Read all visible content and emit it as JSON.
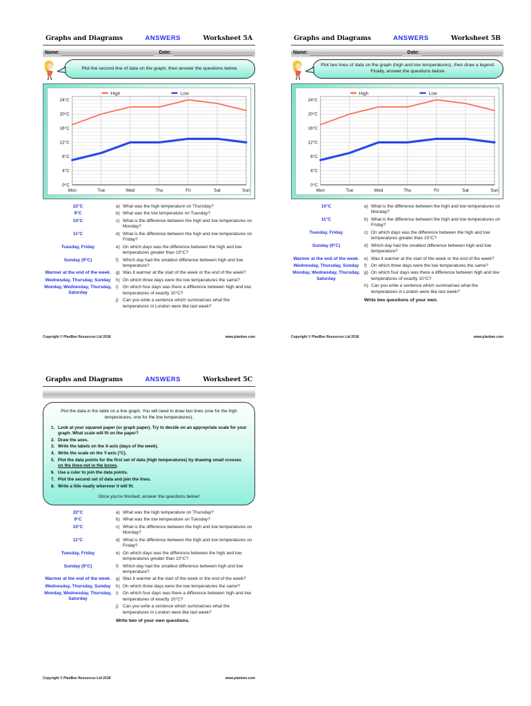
{
  "colors": {
    "answers_blue": "#2233ee",
    "answer_text_blue": "#2233dd",
    "high_line": "#ff6a50",
    "low_line": "#2648e8",
    "bubble_teal": "#83ecd6"
  },
  "chart_data": [
    {
      "worksheet": "5A",
      "type": "line",
      "title": "",
      "xlabel": "",
      "ylabel": "",
      "categories": [
        "Mon",
        "Tue",
        "Wed",
        "Thu",
        "Fri",
        "Sat",
        "Sun"
      ],
      "series": [
        {
          "name": "High",
          "color": "#ff6a50",
          "values": [
            17,
            20,
            22,
            22,
            24,
            23,
            21
          ]
        },
        {
          "name": "Low",
          "color": "#2648e8",
          "values": [
            7,
            9,
            12,
            12,
            13,
            13,
            12
          ]
        }
      ],
      "ylim": [
        0,
        24
      ],
      "ytick_major": 4,
      "ytick_minor": 1,
      "ylabel_suffix": "°C",
      "grid": true,
      "legend_position": "top"
    },
    {
      "worksheet": "5B",
      "type": "line",
      "title": "",
      "xlabel": "",
      "ylabel": "",
      "categories": [
        "Mon",
        "Tue",
        "Wed",
        "Thu",
        "Fri",
        "Sat",
        "Sun"
      ],
      "series": [
        {
          "name": "High",
          "color": "#ff6a50",
          "values": [
            17,
            20,
            22,
            22,
            24,
            23,
            21
          ]
        },
        {
          "name": "Low",
          "color": "#2648e8",
          "values": [
            7,
            9,
            12,
            12,
            13,
            13,
            12
          ]
        }
      ],
      "ylim": [
        0,
        24
      ],
      "ytick_major": 4,
      "ytick_minor": 1,
      "ylabel_suffix": "°C",
      "grid": true,
      "legend_position": "top"
    }
  ],
  "footer": {
    "copyright": "Copyright © PlanBee Resources Ltd 2018",
    "website": "www.planbee.com"
  },
  "worksheets": {
    "a": {
      "header": {
        "title": "Graphs and Diagrams",
        "answers": "ANSWERS",
        "worksheet": "Worksheet 5A"
      },
      "name_label": "Name:",
      "date_label": "Date:",
      "bubble": "Plot the second line of data on the graph, then answer the questions below.",
      "questions": [
        {
          "letter": "a)",
          "answer": "22°C",
          "text": "What was the high temperature on Thursday?"
        },
        {
          "letter": "b)",
          "answer": "9°C",
          "text": "What was the low temperature on Tuesday?"
        },
        {
          "letter": "c)",
          "answer": "10°C",
          "text": "What is the difference between the high and low temperatures on Monday?"
        },
        {
          "letter": "d)",
          "answer": "11°C",
          "text": "What is the difference between the high and low temperatures on Friday?"
        },
        {
          "letter": "e)",
          "answer": "Tuesday, Friday",
          "text": "On which days was the difference between the high and low temperatures greater than 10°C?"
        },
        {
          "letter": "f)",
          "answer": "Sunday (9°C)",
          "text": "Which day had the smallest difference between high and low temperature?"
        },
        {
          "letter": "g)",
          "answer": "Warmer at the end of the week.",
          "text": "Was it warmer at the start of the week or the end of the week?"
        },
        {
          "letter": "h)",
          "answer": "Wednesday, Thursday, Sunday",
          "text": "On which three days were the low temperatures the same?"
        },
        {
          "letter": "i)",
          "answer": "Monday, Wednesday, Thursday, Saturday",
          "text": "On which four days was there a difference between high and low temperatures of exactly 10°C?"
        },
        {
          "letter": "j)",
          "answer": "",
          "text": "Can you write a sentence which summarises what the temperatures in London were like last week?"
        }
      ]
    },
    "b": {
      "header": {
        "title": "Graphs and Diagrams",
        "answers": "ANSWERS",
        "worksheet": "Worksheet 5B"
      },
      "name_label": "Name:",
      "date_label": "Date:",
      "bubble": "Plot two lines of data on the graph (high and low temperatures), then draw a legend. Finally, answer the questions below.",
      "questions": [
        {
          "letter": "a)",
          "answer": "10°C",
          "text": "What is the difference between the high and low temperatures on Monday?"
        },
        {
          "letter": "b)",
          "answer": "11°C",
          "text": "What is the difference between the high and low temperatures on Friday?"
        },
        {
          "letter": "c)",
          "answer": "Tuesday, Friday",
          "text": "On which days was the difference between the high and low temperatures greater than 10°C?"
        },
        {
          "letter": "d)",
          "answer": "Sunday (9°C)",
          "text": "Which day had the smallest difference between high and low temperature?"
        },
        {
          "letter": "e)",
          "answer": "Warmer at the end of the week.",
          "text": "Was it warmer at the start of the week or the end of the week?"
        },
        {
          "letter": "f)",
          "answer": "Wednesday, Thursday, Sunday",
          "text": "On which three days were the low temperatures the same?"
        },
        {
          "letter": "g)",
          "answer": "Monday, Wednesday, Thursday, Saturday",
          "text": "On which four days was there a difference between high and low temperatures of exactly 10°C?"
        },
        {
          "letter": "h)",
          "answer": "",
          "text": "Can you write a sentence which summarises what the temperatures in London were like last week?"
        }
      ],
      "extra": "Write two questions of your own."
    },
    "c": {
      "header": {
        "title": "Graphs and Diagrams",
        "answers": "ANSWERS",
        "worksheet": "Worksheet 5C"
      },
      "intro": "Plot the data in the table on a line graph. You will need to draw two lines (one for the high temperatures, one for the low temperatures).",
      "steps": [
        {
          "num": "1.",
          "pre": "Look at your squared paper (or graph paper). Try to decide on an appropriate scale for your graph. What scale will fit on the paper?",
          "underline": "",
          "post": ""
        },
        {
          "num": "2.",
          "pre": "Draw the axes.",
          "underline": "",
          "post": ""
        },
        {
          "num": "3.",
          "pre": "Write the labels on the X-axis (days of the week).",
          "underline": "",
          "post": ""
        },
        {
          "num": "4.",
          "pre": "Write the scale on the Y-axis (°C).",
          "underline": "",
          "post": ""
        },
        {
          "num": "5.",
          "pre": "Plot the data points for the first set of data (high temperatures) by drawing small crosses ",
          "underline": "on the lines-not in the boxes",
          "post": "."
        },
        {
          "num": "6.",
          "pre": "Use a ruler to join the data points.",
          "underline": "",
          "post": ""
        },
        {
          "num": "7.",
          "pre": "Plot the second set of data and join the lines.",
          "underline": "",
          "post": ""
        },
        {
          "num": "8.",
          "pre": "Write a title neatly wherever it will fit.",
          "underline": "",
          "post": ""
        }
      ],
      "note": "Once you're finished, answer the questions below!",
      "questions": [
        {
          "letter": "a)",
          "answer": "22°C",
          "text": "What was the high temperature on Thursday?"
        },
        {
          "letter": "b)",
          "answer": "9°C",
          "text": "What was the low temperature on Tuesday?"
        },
        {
          "letter": "c)",
          "answer": "10°C",
          "text": "What is the difference between the high and low temperatures on Monday?"
        },
        {
          "letter": "d)",
          "answer": "11°C",
          "text": "What is the difference between the high and low temperatures on Friday?"
        },
        {
          "letter": "e)",
          "answer": "Tuesday, Friday",
          "text": "On which days was the difference between the high and low temperatures greater than 10°C?"
        },
        {
          "letter": "f)",
          "answer": "Sunday (9°C)",
          "text": "Which day had the smallest difference between high and low temperature?"
        },
        {
          "letter": "g)",
          "answer": "Warmer at the end of the week.",
          "text": "Was it warmer at the start of the week or the end of the week?"
        },
        {
          "letter": "h)",
          "answer": "Wednesday, Thursday, Sunday",
          "text": "On which three days were the low temperatures the same?"
        },
        {
          "letter": "i)",
          "answer": "Monday, Wednesday, Thursday, Saturday",
          "text": "On which four days was there a difference between high and low temperatures of exactly 10°C?"
        },
        {
          "letter": "j)",
          "answer": "",
          "text": "Can you write a sentence which summarises what the temperatures in London were like last week?"
        }
      ],
      "extra": "Write two of your own questions."
    }
  }
}
